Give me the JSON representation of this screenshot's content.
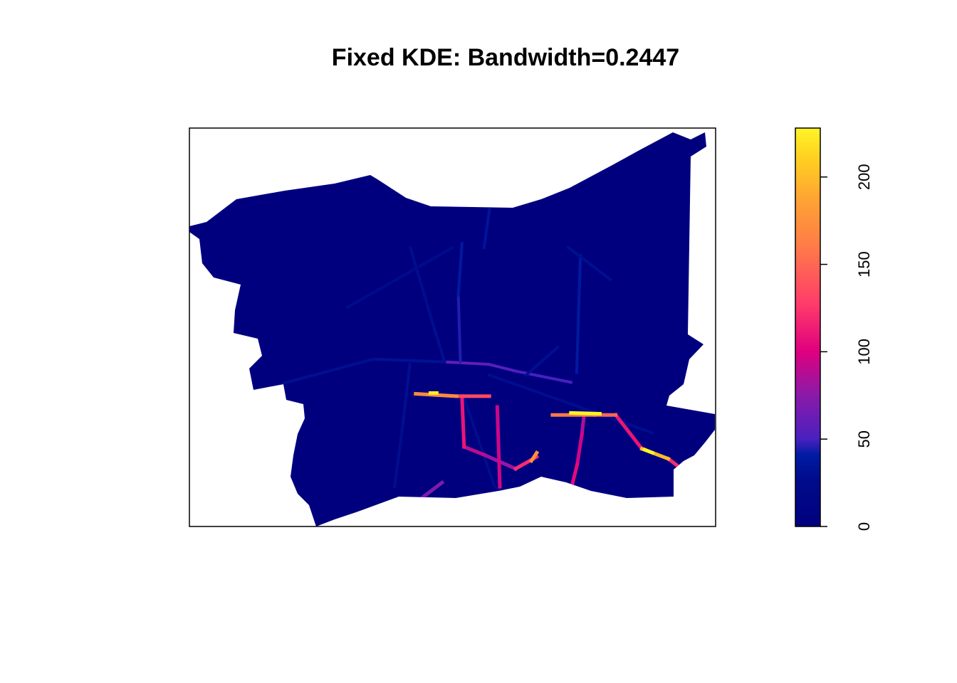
{
  "chart_data": {
    "type": "heatmap",
    "title": "Fixed KDE: Bandwidth=0.2447",
    "xlabel": "",
    "ylabel": "",
    "axes_drawn": false,
    "colorbar": {
      "range": [
        0,
        228
      ],
      "ticks": [
        0,
        50,
        100,
        150,
        200
      ],
      "tick_labels": [
        "0",
        "50",
        "100",
        "150",
        "200"
      ],
      "palette": [
        "#00007f",
        "#0a1f9e",
        "#5a1fc8",
        "#8f1aa6",
        "#e4007f",
        "#ff4c63",
        "#ff9438",
        "#ffc421",
        "#fff524"
      ],
      "label_rotation": "vertical"
    },
    "background_density": 5,
    "region_color": "#00007f",
    "road_segments": [
      {
        "from": [
          0.485,
          0.413
        ],
        "to": [
          0.569,
          0.407
        ],
        "value": 60
      },
      {
        "from": [
          0.569,
          0.407
        ],
        "to": [
          0.62,
          0.39
        ],
        "value": 55
      },
      {
        "from": [
          0.62,
          0.39
        ],
        "to": [
          0.725,
          0.362
        ],
        "value": 50
      },
      {
        "from": [
          0.515,
          0.413
        ],
        "to": [
          0.511,
          0.58
        ],
        "value": 45
      },
      {
        "from": [
          0.511,
          0.58
        ],
        "to": [
          0.518,
          0.71
        ],
        "value": 40
      },
      {
        "from": [
          0.736,
          0.387
        ],
        "to": [
          0.743,
          0.68
        ],
        "value": 40
      },
      {
        "from": [
          0.576,
          0.85
        ],
        "to": [
          0.56,
          0.7
        ],
        "value": 35
      },
      {
        "from": [
          0.485,
          0.413
        ],
        "to": [
          0.35,
          0.42
        ],
        "value": 32
      },
      {
        "from": [
          0.35,
          0.42
        ],
        "to": [
          0.18,
          0.36
        ],
        "value": 30
      },
      {
        "from": [
          0.18,
          0.36
        ],
        "to": [
          0.13,
          0.32
        ],
        "value": 28
      },
      {
        "from": [
          0.485,
          0.413
        ],
        "to": [
          0.46,
          0.52
        ],
        "value": 30
      },
      {
        "from": [
          0.46,
          0.52
        ],
        "to": [
          0.42,
          0.7
        ],
        "value": 28
      },
      {
        "from": [
          0.419,
          0.407
        ],
        "to": [
          0.405,
          0.25
        ],
        "value": 30
      },
      {
        "from": [
          0.405,
          0.25
        ],
        "to": [
          0.39,
          0.1
        ],
        "value": 28
      },
      {
        "from": [
          0.52,
          0.33
        ],
        "to": [
          0.58,
          0.1
        ],
        "value": 28
      },
      {
        "from": [
          0.58,
          0.1
        ],
        "to": [
          0.71,
          0.0
        ],
        "value": 25
      },
      {
        "from": [
          0.64,
          0.38
        ],
        "to": [
          0.7,
          0.45
        ],
        "value": 30
      },
      {
        "from": [
          0.57,
          0.38
        ],
        "to": [
          0.88,
          0.235
        ],
        "value": 28
      },
      {
        "from": [
          0.72,
          0.7
        ],
        "to": [
          0.8,
          0.62
        ],
        "value": 30
      },
      {
        "from": [
          0.5,
          0.7
        ],
        "to": [
          0.3,
          0.55
        ],
        "value": 25
      }
    ],
    "hotspot_segments": [
      {
        "from": [
          0.75,
          0.28
        ],
        "to": [
          0.746,
          0.232
        ],
        "value": 85
      },
      {
        "from": [
          0.746,
          0.232
        ],
        "to": [
          0.737,
          0.156
        ],
        "value": 95
      },
      {
        "from": [
          0.737,
          0.156
        ],
        "to": [
          0.71,
          0.01
        ],
        "value": 105
      },
      {
        "from": [
          0.69,
          0.28
        ],
        "to": [
          0.77,
          0.28
        ],
        "value": 160
      },
      {
        "from": [
          0.77,
          0.28
        ],
        "to": [
          0.81,
          0.28
        ],
        "value": 150
      },
      {
        "from": [
          0.725,
          0.285
        ],
        "to": [
          0.78,
          0.283
        ],
        "value": 228
      },
      {
        "from": [
          0.43,
          0.333
        ],
        "to": [
          0.508,
          0.327
        ],
        "value": 170
      },
      {
        "from": [
          0.458,
          0.335
        ],
        "to": [
          0.47,
          0.335
        ],
        "value": 225
      },
      {
        "from": [
          0.508,
          0.327
        ],
        "to": [
          0.57,
          0.327
        ],
        "value": 135
      },
      {
        "from": [
          0.518,
          0.327
        ],
        "to": [
          0.522,
          0.2
        ],
        "value": 110
      },
      {
        "from": [
          0.585,
          0.3
        ],
        "to": [
          0.59,
          0.1
        ],
        "value": 95
      },
      {
        "from": [
          0.522,
          0.2
        ],
        "to": [
          0.56,
          0.18
        ],
        "value": 90
      },
      {
        "from": [
          0.56,
          0.18
        ],
        "to": [
          0.62,
          0.145
        ],
        "value": 80
      },
      {
        "from": [
          0.62,
          0.145
        ],
        "to": [
          0.66,
          0.175
        ],
        "value": 120
      },
      {
        "from": [
          0.65,
          0.165
        ],
        "to": [
          0.66,
          0.185
        ],
        "value": 175
      },
      {
        "from": [
          0.86,
          0.195
        ],
        "to": [
          0.91,
          0.17
        ],
        "value": 200
      },
      {
        "from": [
          0.91,
          0.17
        ],
        "to": [
          0.95,
          0.13
        ],
        "value": 120
      },
      {
        "from": [
          0.865,
          0.193
        ],
        "to": [
          0.88,
          0.185
        ],
        "value": 228
      },
      {
        "from": [
          0.81,
          0.28
        ],
        "to": [
          0.86,
          0.195
        ],
        "value": 110
      },
      {
        "from": [
          0.38,
          0.03
        ],
        "to": [
          0.42,
          0.05
        ],
        "value": 80
      },
      {
        "from": [
          0.42,
          0.05
        ],
        "to": [
          0.48,
          0.11
        ],
        "value": 70
      },
      {
        "from": [
          0.8,
          0.02
        ],
        "to": [
          0.83,
          0.06
        ],
        "value": 75
      },
      {
        "from": [
          0.68,
          0.05
        ],
        "to": [
          0.73,
          0.08
        ],
        "value": 70
      }
    ]
  }
}
